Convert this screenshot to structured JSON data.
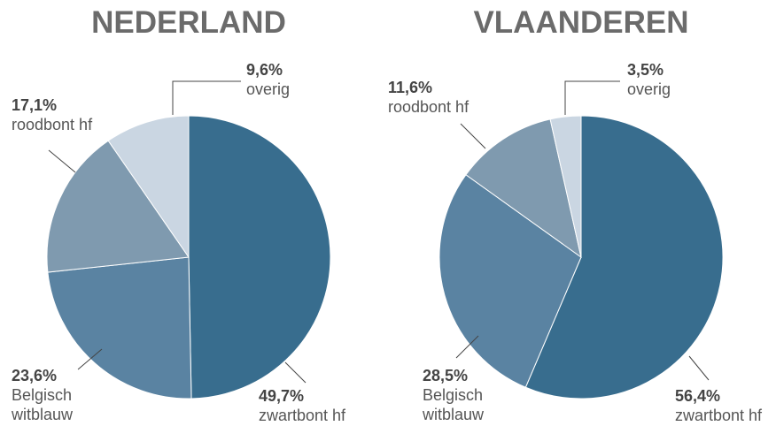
{
  "chart_data": [
    {
      "type": "pie",
      "title": "NEDERLAND",
      "categories": [
        "zwartbont hf",
        "Belgisch witblauw",
        "roodbont hf",
        "overig"
      ],
      "values": [
        49.7,
        23.6,
        17.1,
        9.6
      ],
      "value_labels": [
        "49,7%",
        "23,6%",
        "17,1%",
        "9,6%"
      ],
      "colors": [
        "#386d8e",
        "#5a83a2",
        "#7f9aaf",
        "#cad6e2"
      ]
    },
    {
      "type": "pie",
      "title": "VLAANDEREN",
      "categories": [
        "zwartbont hf",
        "Belgisch witblauw",
        "roodbont hf",
        "overig"
      ],
      "values": [
        56.4,
        28.5,
        11.6,
        3.5
      ],
      "value_labels": [
        "56,4%",
        "28,5%",
        "11,6%",
        "3,5%"
      ],
      "colors": [
        "#386d8e",
        "#5a83a2",
        "#7f9aaf",
        "#cad6e2"
      ]
    }
  ]
}
